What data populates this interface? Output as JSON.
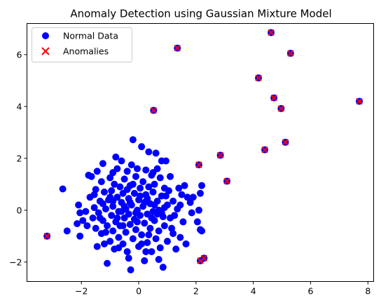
{
  "chart_data": {
    "type": "scatter",
    "title": "Anomaly Detection using Gaussian Mixture Model",
    "xlabel": "",
    "ylabel": "",
    "xlim": [
      -3.9,
      8.2
    ],
    "ylim": [
      -2.75,
      7.2
    ],
    "xticks": [
      -2,
      0,
      2,
      4,
      6,
      8
    ],
    "yticks": [
      -2,
      0,
      2,
      4,
      6
    ],
    "grid": false,
    "legend": "upper-left",
    "colors": {
      "normal": "#0000ff",
      "anomaly": "#ff0000"
    },
    "series": [
      {
        "name": "Normal Data",
        "marker": "circle",
        "points": [
          [
            -2.65,
            0.82
          ],
          [
            -2.5,
            -0.8
          ],
          [
            -2.15,
            -0.52
          ],
          [
            -2.1,
            0.2
          ],
          [
            -2.05,
            -0.1
          ],
          [
            -2.05,
            -1.0
          ],
          [
            -1.95,
            -0.4
          ],
          [
            -1.85,
            -0.05
          ],
          [
            -1.8,
            -0.6
          ],
          [
            -1.7,
            0.5
          ],
          [
            -1.75,
            1.35
          ],
          [
            -1.65,
            1.3
          ],
          [
            -1.6,
            -0.3
          ],
          [
            -1.55,
            0.1
          ],
          [
            -1.5,
            -0.7
          ],
          [
            -1.5,
            0.8
          ],
          [
            -1.45,
            1.5
          ],
          [
            -1.45,
            -1.4
          ],
          [
            -1.4,
            -0.1
          ],
          [
            -1.35,
            0.35
          ],
          [
            -1.3,
            1.1
          ],
          [
            -1.3,
            -0.9
          ],
          [
            -1.25,
            -0.4
          ],
          [
            -1.25,
            1.8
          ],
          [
            -1.2,
            -1.3
          ],
          [
            -1.2,
            0.7
          ],
          [
            -1.15,
            0.05
          ],
          [
            -1.1,
            -2.05
          ],
          [
            -1.1,
            -0.6
          ],
          [
            -1.05,
            0.4
          ],
          [
            -1.0,
            -1.2
          ],
          [
            -1.0,
            1.25
          ],
          [
            -0.95,
            -0.2
          ],
          [
            -0.95,
            0.75
          ],
          [
            -0.9,
            -0.8
          ],
          [
            -0.9,
            0.15
          ],
          [
            -0.85,
            -1.5
          ],
          [
            -0.85,
            1.0
          ],
          [
            -0.8,
            2.05
          ],
          [
            -0.8,
            -0.45
          ],
          [
            -0.75,
            0.5
          ],
          [
            -0.75,
            1.6
          ],
          [
            -0.7,
            -0.05
          ],
          [
            -0.7,
            -1.05
          ],
          [
            -0.65,
            0.9
          ],
          [
            -0.65,
            -0.6
          ],
          [
            -0.6,
            1.9
          ],
          [
            -0.6,
            0.3
          ],
          [
            -0.55,
            -1.3
          ],
          [
            -0.55,
            0.65
          ],
          [
            -0.5,
            -0.3
          ],
          [
            -0.5,
            1.2
          ],
          [
            -0.45,
            0.05
          ],
          [
            -0.45,
            -0.85
          ],
          [
            -0.4,
            1.5
          ],
          [
            -0.4,
            -1.6
          ],
          [
            -0.35,
            0.45
          ],
          [
            -0.35,
            -0.15
          ],
          [
            -0.3,
            0.95
          ],
          [
            -0.3,
            -0.55
          ],
          [
            -0.28,
            -2.3
          ],
          [
            -0.25,
            1.75
          ],
          [
            -0.25,
            0.2
          ],
          [
            -0.2,
            2.72
          ],
          [
            -0.2,
            -1.1
          ],
          [
            -0.15,
            0.65
          ],
          [
            -0.15,
            -0.35
          ],
          [
            -0.1,
            1.3
          ],
          [
            -0.1,
            -0.75
          ],
          [
            -0.05,
            0.0
          ],
          [
            -0.05,
            1.6
          ],
          [
            0.0,
            -1.4
          ],
          [
            0.0,
            0.4
          ],
          [
            0.05,
            -0.2
          ],
          [
            0.05,
            0.85
          ],
          [
            0.1,
            2.45
          ],
          [
            0.1,
            -0.95
          ],
          [
            0.15,
            0.15
          ],
          [
            0.15,
            1.1
          ],
          [
            0.2,
            -0.5
          ],
          [
            0.2,
            -1.95
          ],
          [
            0.25,
            0.6
          ],
          [
            0.25,
            1.55
          ],
          [
            0.3,
            -0.15
          ],
          [
            0.3,
            -1.25
          ],
          [
            0.35,
            0.9
          ],
          [
            0.35,
            2.25
          ],
          [
            0.4,
            0.25
          ],
          [
            0.4,
            -0.7
          ],
          [
            0.45,
            1.35
          ],
          [
            0.45,
            -1.6
          ],
          [
            0.5,
            -0.05
          ],
          [
            0.5,
            0.7
          ],
          [
            0.55,
            -0.4
          ],
          [
            0.55,
            1.0
          ],
          [
            0.6,
            2.2
          ],
          [
            0.6,
            -1.1
          ],
          [
            0.65,
            0.35
          ],
          [
            0.65,
            1.6
          ],
          [
            0.7,
            -0.8
          ],
          [
            0.7,
            0.0
          ],
          [
            0.75,
            1.25
          ],
          [
            0.75,
            -1.45
          ],
          [
            0.8,
            0.55
          ],
          [
            0.8,
            1.9
          ],
          [
            0.85,
            -0.25
          ],
          [
            0.85,
            -2.2
          ],
          [
            0.9,
            0.85
          ],
          [
            0.9,
            -0.6
          ],
          [
            0.95,
            1.9
          ],
          [
            1.0,
            0.2
          ],
          [
            1.0,
            -1.2
          ],
          [
            1.05,
            0.75
          ],
          [
            1.1,
            1.3
          ],
          [
            1.1,
            -0.3
          ],
          [
            1.15,
            -0.7
          ],
          [
            1.2,
            0.35
          ],
          [
            1.3,
            -1.5
          ],
          [
            1.35,
            0.05
          ],
          [
            1.4,
            0.85
          ],
          [
            1.45,
            -1.05
          ],
          [
            1.5,
            0.6
          ],
          [
            1.55,
            -0.45
          ],
          [
            1.6,
            0.95
          ],
          [
            1.65,
            -1.3
          ],
          [
            1.8,
            0.3
          ],
          [
            1.85,
            -0.1
          ],
          [
            1.9,
            0.5
          ],
          [
            2.05,
            -0.45
          ],
          [
            2.15,
            0.65
          ],
          [
            2.1,
            0.0
          ],
          [
            2.15,
            -0.75
          ],
          [
            2.2,
            -0.8
          ],
          [
            2.2,
            0.95
          ],
          [
            -0.9,
            0.35
          ],
          [
            -0.6,
            -0.05
          ],
          [
            -0.3,
            0.3
          ],
          [
            0.05,
            0.55
          ],
          [
            0.3,
            0.45
          ],
          [
            0.55,
            0.2
          ],
          [
            -1.0,
            0.5
          ],
          [
            -0.55,
            -0.6
          ],
          [
            -0.05,
            -0.45
          ],
          [
            0.45,
            -0.3
          ],
          [
            0.8,
            -0.1
          ],
          [
            -1.35,
            -0.3
          ],
          [
            -0.2,
            1.0
          ],
          [
            0.5,
            1.45
          ],
          [
            0.95,
            0.55
          ],
          [
            -0.7,
            -1.45
          ],
          [
            -0.35,
            -1.85
          ],
          [
            0.25,
            -1.6
          ],
          [
            -1.55,
            0.6
          ],
          [
            -0.9,
            1.45
          ],
          [
            0.7,
            -1.9
          ],
          [
            1.2,
            -0.9
          ],
          [
            1.45,
            0.2
          ],
          [
            1.7,
            0.5
          ],
          [
            -1.15,
            -0.85
          ],
          [
            0.1,
            -1.3
          ],
          [
            -0.4,
            0.8
          ],
          [
            0.35,
            -0.95
          ],
          [
            0.65,
            -0.15
          ],
          [
            -0.75,
            -0.3
          ],
          [
            -1.25,
            0.25
          ],
          [
            -0.1,
            -0.1
          ],
          [
            0.2,
            0.3
          ],
          [
            -0.5,
            0.15
          ],
          [
            0.9,
            0.1
          ],
          [
            1.25,
            -0.2
          ]
        ]
      },
      {
        "name": "Anomalies",
        "marker": "x",
        "points": [
          [
            -3.2,
            -1.0
          ],
          [
            0.52,
            3.85
          ],
          [
            1.35,
            6.25
          ],
          [
            2.1,
            1.75
          ],
          [
            2.15,
            -1.95
          ],
          [
            2.28,
            -1.85
          ],
          [
            2.85,
            2.12
          ],
          [
            3.08,
            1.12
          ],
          [
            4.18,
            5.1
          ],
          [
            4.4,
            2.33
          ],
          [
            4.62,
            6.85
          ],
          [
            4.72,
            4.33
          ],
          [
            4.97,
            3.92
          ],
          [
            5.12,
            2.62
          ],
          [
            5.3,
            6.05
          ],
          [
            7.7,
            4.2
          ]
        ]
      }
    ]
  }
}
